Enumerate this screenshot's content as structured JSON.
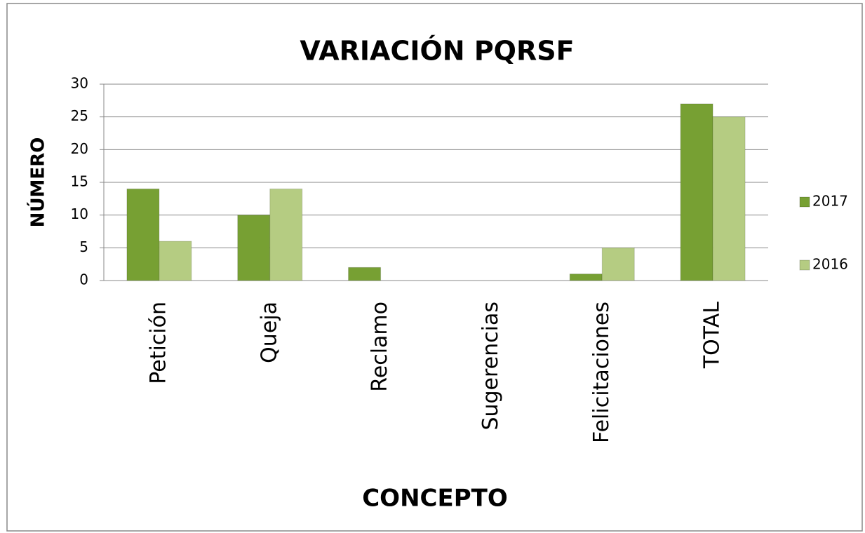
{
  "chart_data": {
    "type": "bar",
    "title": "VARIACIÓN PQRSF",
    "x_label": "CONCEPTO",
    "y_label": "NÚMERO",
    "categories": [
      "Petición",
      "Queja",
      "Reclamo",
      "Sugerencias",
      "Felicitaciones",
      "TOTAL"
    ],
    "series": [
      {
        "name": "2017",
        "color": "#77a033",
        "values": [
          14,
          10,
          2,
          0,
          1,
          27
        ]
      },
      {
        "name": "2016",
        "color": "#b5cc82",
        "values": [
          6,
          14,
          0,
          0,
          5,
          25
        ]
      }
    ],
    "ylim": [
      0,
      30
    ],
    "yticks": [
      0,
      5,
      10,
      15,
      20,
      25,
      30
    ],
    "grid": true,
    "legend": "right"
  }
}
